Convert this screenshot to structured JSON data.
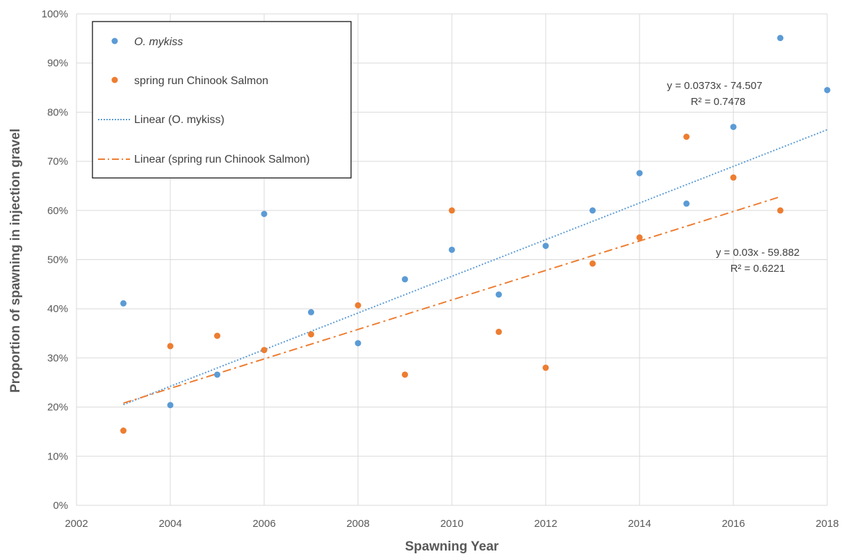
{
  "chart_data": {
    "type": "scatter",
    "xlabel": "Spawning Year",
    "ylabel": "Proportion of spawning in injection gravel",
    "xlim": [
      2002,
      2018
    ],
    "ylim": [
      0,
      100
    ],
    "x_ticks": [
      "2002",
      "2004",
      "2006",
      "2008",
      "2010",
      "2012",
      "2014",
      "2016",
      "2018"
    ],
    "y_ticks": [
      "0%",
      "10%",
      "20%",
      "30%",
      "40%",
      "50%",
      "60%",
      "70%",
      "80%",
      "90%",
      "100%"
    ],
    "grid": true,
    "legend_position": "top-left",
    "series": [
      {
        "name": "O. mykiss",
        "color": "#5B9BD5",
        "x": [
          2003,
          2004,
          2005,
          2006,
          2007,
          2008,
          2009,
          2010,
          2011,
          2012,
          2013,
          2014,
          2015,
          2016,
          2017,
          2018
        ],
        "y": [
          41.1,
          20.4,
          26.6,
          59.3,
          39.3,
          33.0,
          46.0,
          52.0,
          42.9,
          52.8,
          60.0,
          67.6,
          61.4,
          77.0,
          95.1,
          84.5
        ]
      },
      {
        "name": "spring run Chinook Salmon",
        "color": "#ED7D31",
        "x": [
          2003,
          2004,
          2005,
          2006,
          2007,
          2008,
          2009,
          2010,
          2011,
          2012,
          2013,
          2014,
          2015,
          2016,
          2017
        ],
        "y": [
          15.2,
          32.4,
          34.5,
          31.6,
          34.8,
          40.7,
          26.6,
          60.0,
          35.3,
          28.0,
          49.2,
          54.5,
          75.0,
          66.7,
          60.0
        ]
      }
    ],
    "trendlines": [
      {
        "name": "Linear (O. mykiss)",
        "series": "O. mykiss",
        "color": "#5B9BD5",
        "style": "dotted",
        "slope": 0.0373,
        "intercept": -74.507,
        "equation": "y = 0.0373x - 74.507",
        "r2": "R² = 0.7478"
      },
      {
        "name": "Linear (spring run Chinook Salmon)",
        "series": "spring run Chinook Salmon",
        "color": "#ED7D31",
        "style": "dashdot",
        "slope": 0.03,
        "intercept": -59.882,
        "equation": "y = 0.03x - 59.882",
        "r2": "R² = 0.6221"
      }
    ],
    "legend": {
      "entries": [
        "O. mykiss",
        "spring run Chinook Salmon",
        "Linear (O. mykiss)",
        "Linear (spring run Chinook Salmon)"
      ]
    }
  }
}
